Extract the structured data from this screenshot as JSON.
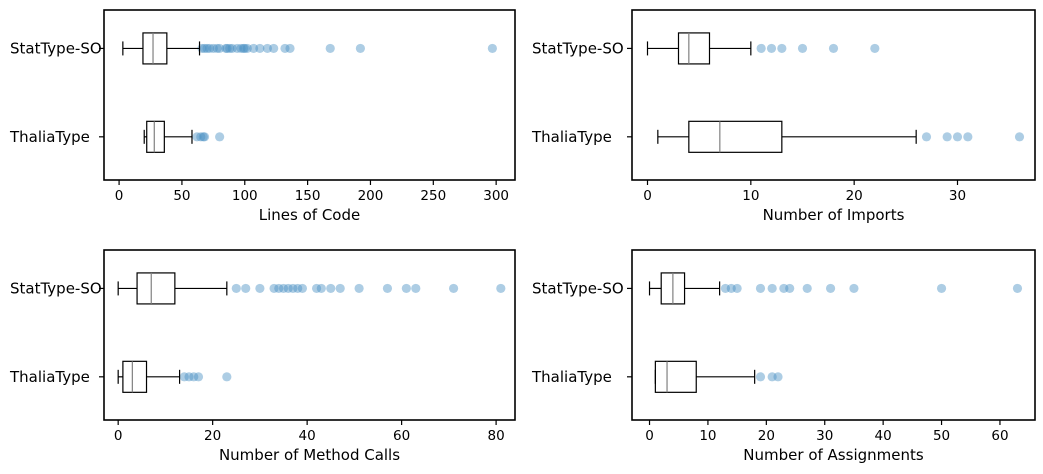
{
  "colors": {
    "outlier": "#4a90c4",
    "box_stroke": "#000000",
    "median": "#808080",
    "frame": "#000000"
  },
  "chart_data": [
    {
      "type": "box",
      "xlabel": "Lines of Code",
      "xlim": [
        -12,
        315
      ],
      "xticks": [
        0,
        50,
        100,
        150,
        200,
        250,
        300
      ],
      "categories": [
        "StatType-SO",
        "ThaliaType"
      ],
      "boxes": [
        {
          "name": "StatType-SO",
          "whisker_low": 3,
          "q1": 19,
          "median": 27,
          "q3": 38,
          "whisker_high": 64,
          "outliers": [
            66,
            68,
            70,
            72,
            75,
            78,
            80,
            85,
            86,
            88,
            90,
            94,
            97,
            99,
            100,
            102,
            107,
            112,
            118,
            123,
            132,
            136,
            168,
            192,
            297
          ]
        },
        {
          "name": "ThaliaType",
          "whisker_low": 20,
          "q1": 22,
          "median": 28,
          "q3": 36,
          "whisker_high": 58,
          "outliers": [
            62,
            65,
            67,
            68,
            80
          ]
        }
      ]
    },
    {
      "type": "box",
      "xlabel": "Number of Imports",
      "xlim": [
        -1.5,
        37.5
      ],
      "xticks": [
        0,
        10,
        20,
        30
      ],
      "categories": [
        "StatType-SO",
        "ThaliaType"
      ],
      "boxes": [
        {
          "name": "StatType-SO",
          "whisker_low": 0,
          "q1": 3,
          "median": 4,
          "q3": 6,
          "whisker_high": 10,
          "outliers": [
            11,
            12,
            13,
            15,
            18,
            22
          ]
        },
        {
          "name": "ThaliaType",
          "whisker_low": 1,
          "q1": 4,
          "median": 7,
          "q3": 13,
          "whisker_high": 26,
          "outliers": [
            27,
            29,
            30,
            31,
            36
          ]
        }
      ]
    },
    {
      "type": "box",
      "xlabel": "Number of Method Calls",
      "xlim": [
        -3,
        84
      ],
      "xticks": [
        0,
        20,
        40,
        60,
        80
      ],
      "categories": [
        "StatType-SO",
        "ThaliaType"
      ],
      "boxes": [
        {
          "name": "StatType-SO",
          "whisker_low": 0,
          "q1": 4,
          "median": 7,
          "q3": 12,
          "whisker_high": 23,
          "outliers": [
            25,
            27,
            30,
            33,
            34,
            35,
            36,
            37,
            38,
            39,
            42,
            43,
            45,
            47,
            51,
            57,
            61,
            63,
            71,
            81
          ]
        },
        {
          "name": "ThaliaType",
          "whisker_low": 0,
          "q1": 1,
          "median": 3,
          "q3": 6,
          "whisker_high": 13,
          "outliers": [
            14,
            15,
            16,
            17,
            23
          ]
        }
      ]
    },
    {
      "type": "box",
      "xlabel": "Number of Assignments",
      "xlim": [
        -3,
        66
      ],
      "xticks": [
        0,
        10,
        20,
        30,
        40,
        50,
        60
      ],
      "categories": [
        "StatType-SO",
        "ThaliaType"
      ],
      "boxes": [
        {
          "name": "StatType-SO",
          "whisker_low": 0,
          "q1": 2,
          "median": 4,
          "q3": 6,
          "whisker_high": 12,
          "outliers": [
            13,
            14,
            15,
            19,
            21,
            23,
            24,
            27,
            31,
            35,
            50,
            63
          ]
        },
        {
          "name": "ThaliaType",
          "whisker_low": 1,
          "q1": 1,
          "median": 3,
          "q3": 8,
          "whisker_high": 18,
          "outliers": [
            19,
            21,
            22
          ]
        }
      ]
    }
  ]
}
